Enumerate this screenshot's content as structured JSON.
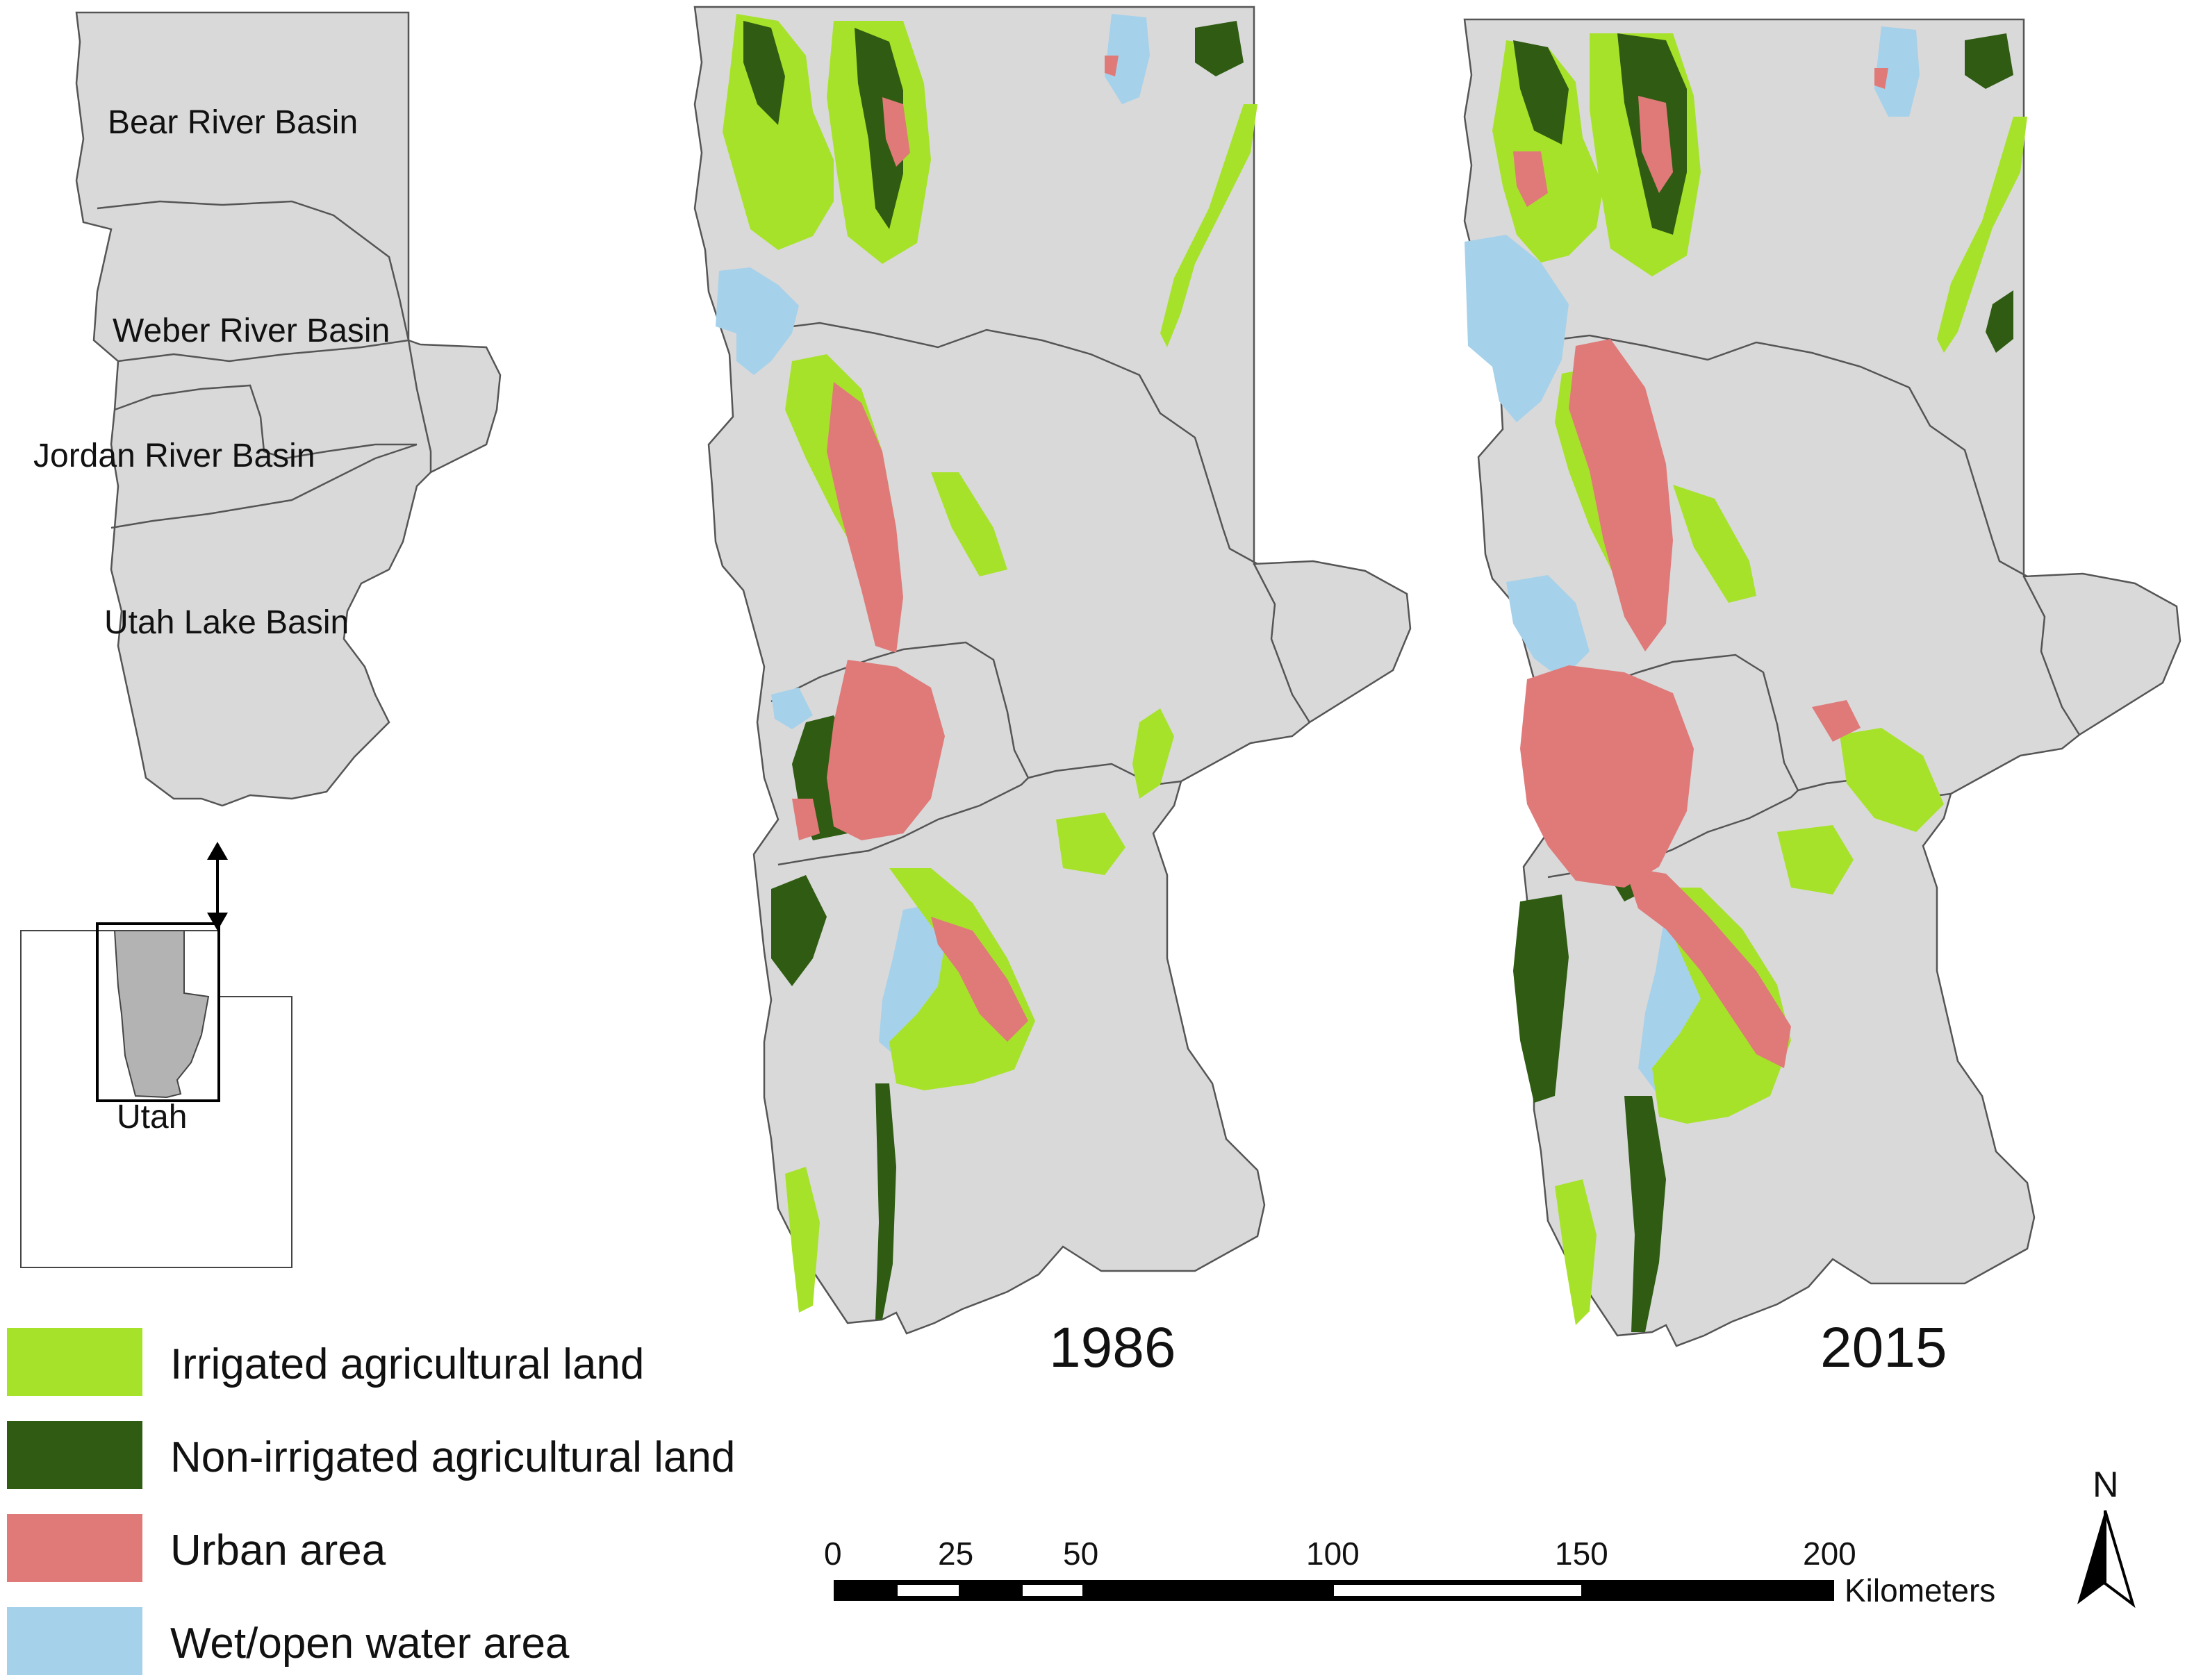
{
  "basins": [
    {
      "name": "Bear River Basin"
    },
    {
      "name": "Weber River Basin"
    },
    {
      "name": "Jordan River Basin"
    },
    {
      "name": "Utah Lake Basin"
    }
  ],
  "inset": {
    "state_label": "Utah"
  },
  "maps": [
    {
      "year": "1986"
    },
    {
      "year": "2015"
    }
  ],
  "legend": [
    {
      "label": "Irrigated agricultural land",
      "color": "#a7e22a"
    },
    {
      "label": "Non-irrigated agricultural land",
      "color": "#2f5c12"
    },
    {
      "label": "Urban area",
      "color": "#df7a79"
    },
    {
      "label": "Wet/open water area",
      "color": "#a6d1ea"
    }
  ],
  "scale_bar": {
    "ticks": [
      "0",
      "25",
      "50",
      "100",
      "150",
      "200"
    ],
    "unit": "Kilometers"
  },
  "north_arrow": {
    "label": "N"
  },
  "colors": {
    "basin_fill": "#d9d9d9",
    "outline": "#555555"
  }
}
